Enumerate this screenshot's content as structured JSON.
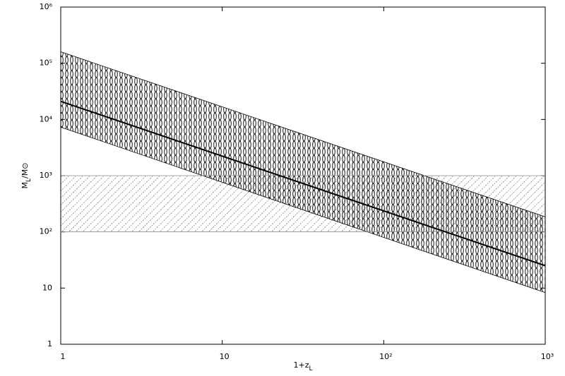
{
  "chart_data": {
    "type": "band-line",
    "x_label": {
      "text": "1+z",
      "sub": "L"
    },
    "y_label": {
      "text": "M",
      "sub": "L",
      "rest": "/M⊙"
    },
    "xscale": "log",
    "yscale": "log",
    "xlim": [
      1,
      1000
    ],
    "ylim": [
      1,
      1000000
    ],
    "xticks": [
      1,
      10,
      {
        "value": 100,
        "label": "10²"
      },
      {
        "value": 1000,
        "label": "10³"
      }
    ],
    "yticks": [
      1,
      10,
      {
        "value": 100,
        "label": "10²"
      },
      {
        "value": 1000,
        "label": "10³"
      },
      {
        "value": 10000,
        "label": "10⁴"
      },
      {
        "value": 100000,
        "label": "10⁵"
      },
      {
        "value": 1000000,
        "label": "10⁶"
      }
    ],
    "series": [
      {
        "color": "#000000",
        "x": [
          1,
          1000
        ],
        "values": [
          21000,
          25
        ]
      }
    ],
    "bands": [
      {
        "hatch": "vertical",
        "color": "#000000",
        "x": [
          1,
          1000
        ],
        "lower": [
          7300,
          8.3
        ],
        "upper": [
          160000,
          185
        ]
      },
      {
        "hatch": "diagonal",
        "color": "#000000",
        "x": [
          1,
          1000
        ],
        "lower": [
          100,
          100
        ],
        "upper": [
          1000,
          1000
        ]
      }
    ]
  }
}
